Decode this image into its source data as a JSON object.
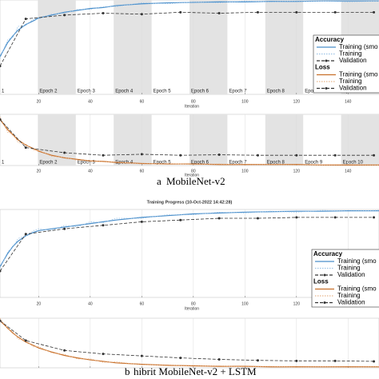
{
  "title": "Training Progress (10-Oct-2022 14:42:28)",
  "captions": [
    {
      "letter": "a",
      "text": "MobileNet-v2"
    },
    {
      "letter": "b",
      "text": "hibrit MobileNet-v2 + LSTM"
    }
  ],
  "chart_data": [
    {
      "type": "line",
      "legend_title": "Accuracy",
      "x_label": "Iteration",
      "xlim": [
        5,
        152
      ],
      "ylim": [
        0,
        100
      ],
      "xticks": [
        20,
        40,
        60,
        80,
        100,
        120,
        140
      ],
      "grid": true,
      "epoch_labels": [
        "1",
        "Epoch 2",
        "Epoch 3",
        "Epoch 4",
        "Epoch 5",
        "Epoch 6",
        "Epoch 7",
        "Epoch 8",
        "Epoch 9",
        "Epoch 10"
      ],
      "series": [
        {
          "name": "Training (smo",
          "color": "#4a8fcb",
          "style": "solid",
          "x": [
            5,
            8,
            10,
            12,
            15,
            18,
            20,
            25,
            30,
            35,
            40,
            45,
            50,
            60,
            70,
            80,
            90,
            100,
            110,
            120,
            130,
            140,
            152
          ],
          "values": [
            40,
            55,
            62,
            68,
            74,
            78,
            81,
            84,
            87,
            89,
            91,
            92,
            94,
            96,
            97,
            97.5,
            98,
            98,
            98.5,
            98.5,
            99,
            99,
            99
          ]
        },
        {
          "name": "Training",
          "color": "#9cc3e6",
          "style": "dotted",
          "x": [
            5,
            8,
            10,
            12,
            15,
            18,
            20,
            25,
            30,
            35,
            40,
            45,
            50,
            60,
            70,
            80,
            90,
            100,
            110,
            120,
            130,
            140,
            152
          ],
          "values": [
            38,
            58,
            60,
            72,
            73,
            80,
            80,
            85,
            86,
            90,
            90,
            93,
            93,
            97,
            96,
            98,
            97,
            99,
            98,
            99,
            99,
            98,
            99
          ]
        },
        {
          "name": "Validation",
          "color": "#333333",
          "style": "dashed",
          "marker": "circle",
          "x": [
            5,
            15,
            30,
            45,
            60,
            75,
            90,
            105,
            120,
            135,
            150
          ],
          "values": [
            30,
            80,
            84,
            86,
            85,
            87,
            86,
            87,
            87,
            87,
            87
          ]
        }
      ]
    },
    {
      "type": "line",
      "legend_title": "Loss",
      "x_label": "Iteration",
      "xlim": [
        5,
        152
      ],
      "ylim": [
        0,
        1
      ],
      "xticks": [
        20,
        40,
        60,
        80,
        100,
        120,
        140
      ],
      "grid": true,
      "epoch_labels": [
        "1",
        "Epoch 2",
        "Epoch 3",
        "Epoch 4",
        "Epoch 5",
        "Epoch 6",
        "Epoch 7",
        "Epoch 8",
        "Epoch 9",
        "Epoch 10"
      ],
      "series": [
        {
          "name": "Training (smo",
          "color": "#c8702a",
          "style": "solid",
          "x": [
            5,
            8,
            10,
            12,
            15,
            18,
            20,
            25,
            30,
            35,
            40,
            45,
            50,
            60,
            70,
            80,
            90,
            100,
            110,
            120,
            130,
            140,
            152
          ],
          "values": [
            0.9,
            0.7,
            0.6,
            0.5,
            0.4,
            0.33,
            0.28,
            0.2,
            0.15,
            0.12,
            0.09,
            0.08,
            0.06,
            0.04,
            0.03,
            0.03,
            0.02,
            0.02,
            0.02,
            0.02,
            0.01,
            0.01,
            0.01
          ]
        },
        {
          "name": "Training",
          "color": "#e8b48a",
          "style": "dotted",
          "x": [
            5,
            8,
            10,
            12,
            15,
            18,
            20,
            25,
            30,
            35,
            40,
            45,
            50,
            60,
            70,
            80,
            90,
            100,
            110,
            120,
            130,
            140,
            152
          ],
          "values": [
            0.95,
            0.65,
            0.62,
            0.45,
            0.42,
            0.3,
            0.3,
            0.18,
            0.16,
            0.1,
            0.1,
            0.07,
            0.07,
            0.03,
            0.04,
            0.02,
            0.03,
            0.01,
            0.02,
            0.01,
            0.01,
            0.02,
            0.01
          ]
        },
        {
          "name": "Validation",
          "color": "#333333",
          "style": "dashed",
          "marker": "circle",
          "x": [
            5,
            15,
            30,
            45,
            60,
            75,
            90,
            105,
            120,
            135,
            150
          ],
          "values": [
            0.9,
            0.35,
            0.25,
            0.2,
            0.22,
            0.2,
            0.21,
            0.2,
            0.2,
            0.2,
            0.2
          ]
        }
      ]
    },
    {
      "type": "line",
      "legend_title": "Accuracy",
      "x_label": "Iteration",
      "xlim": [
        5,
        152
      ],
      "ylim": [
        0,
        100
      ],
      "xticks": [
        20,
        40,
        60,
        80,
        100,
        120,
        140
      ],
      "grid": true,
      "series": [
        {
          "name": "Training (smo",
          "color": "#4a8fcb",
          "style": "solid",
          "x": [
            5,
            8,
            10,
            12,
            15,
            18,
            20,
            25,
            30,
            35,
            40,
            45,
            50,
            60,
            70,
            80,
            90,
            100,
            110,
            120,
            130,
            140,
            152
          ],
          "values": [
            35,
            50,
            58,
            64,
            70,
            74,
            76,
            78,
            80,
            82,
            84,
            86,
            88,
            91,
            93,
            95,
            96,
            97,
            97.5,
            98,
            98,
            98.5,
            98.5
          ]
        },
        {
          "name": "Training",
          "color": "#9cc3e6",
          "style": "dotted",
          "x": [
            5,
            8,
            10,
            12,
            15,
            18,
            20,
            25,
            30,
            35,
            40,
            45,
            50,
            60,
            70,
            80,
            90,
            100,
            110,
            120,
            130,
            140,
            152
          ],
          "values": [
            33,
            52,
            57,
            67,
            70,
            76,
            78,
            76,
            82,
            80,
            86,
            85,
            90,
            90,
            94,
            94,
            97,
            96,
            98,
            97,
            99,
            98,
            99
          ]
        },
        {
          "name": "Validation",
          "color": "#333333",
          "style": "dashed",
          "marker": "circle",
          "x": [
            5,
            15,
            30,
            45,
            60,
            75,
            90,
            105,
            120,
            135,
            150
          ],
          "values": [
            30,
            72,
            78,
            82,
            86,
            88,
            90,
            90,
            91,
            91,
            91
          ]
        }
      ]
    },
    {
      "type": "line",
      "legend_title": "Loss",
      "x_label": "Iteration",
      "xlim": [
        5,
        152
      ],
      "ylim": [
        0,
        1
      ],
      "xticks": [
        20,
        40,
        60,
        80,
        100,
        120,
        140
      ],
      "grid": true,
      "series": [
        {
          "name": "Training (smo",
          "color": "#c8702a",
          "style": "solid",
          "x": [
            5,
            8,
            10,
            12,
            15,
            18,
            20,
            25,
            30,
            35,
            40,
            45,
            50,
            60,
            70,
            80,
            90,
            100,
            110,
            120,
            130,
            140,
            152
          ],
          "values": [
            0.95,
            0.8,
            0.7,
            0.62,
            0.52,
            0.45,
            0.4,
            0.32,
            0.25,
            0.2,
            0.16,
            0.13,
            0.1,
            0.07,
            0.05,
            0.04,
            0.03,
            0.03,
            0.02,
            0.02,
            0.02,
            0.02,
            0.02
          ]
        },
        {
          "name": "Training",
          "color": "#e8b48a",
          "style": "dotted",
          "x": [
            5,
            8,
            10,
            12,
            15,
            18,
            20,
            25,
            30,
            35,
            40,
            45,
            50,
            60,
            70,
            80,
            90,
            100,
            110,
            120,
            130,
            140,
            152
          ],
          "values": [
            1,
            0.78,
            0.74,
            0.58,
            0.55,
            0.42,
            0.43,
            0.3,
            0.27,
            0.18,
            0.18,
            0.11,
            0.12,
            0.06,
            0.06,
            0.03,
            0.04,
            0.02,
            0.03,
            0.01,
            0.02,
            0.01,
            0.02
          ]
        },
        {
          "name": "Validation",
          "color": "#333333",
          "style": "dashed",
          "marker": "circle",
          "x": [
            5,
            15,
            30,
            45,
            60,
            75,
            90,
            105,
            120,
            135,
            150
          ],
          "values": [
            0.95,
            0.55,
            0.35,
            0.28,
            0.24,
            0.2,
            0.17,
            0.15,
            0.14,
            0.14,
            0.13
          ]
        }
      ]
    }
  ]
}
